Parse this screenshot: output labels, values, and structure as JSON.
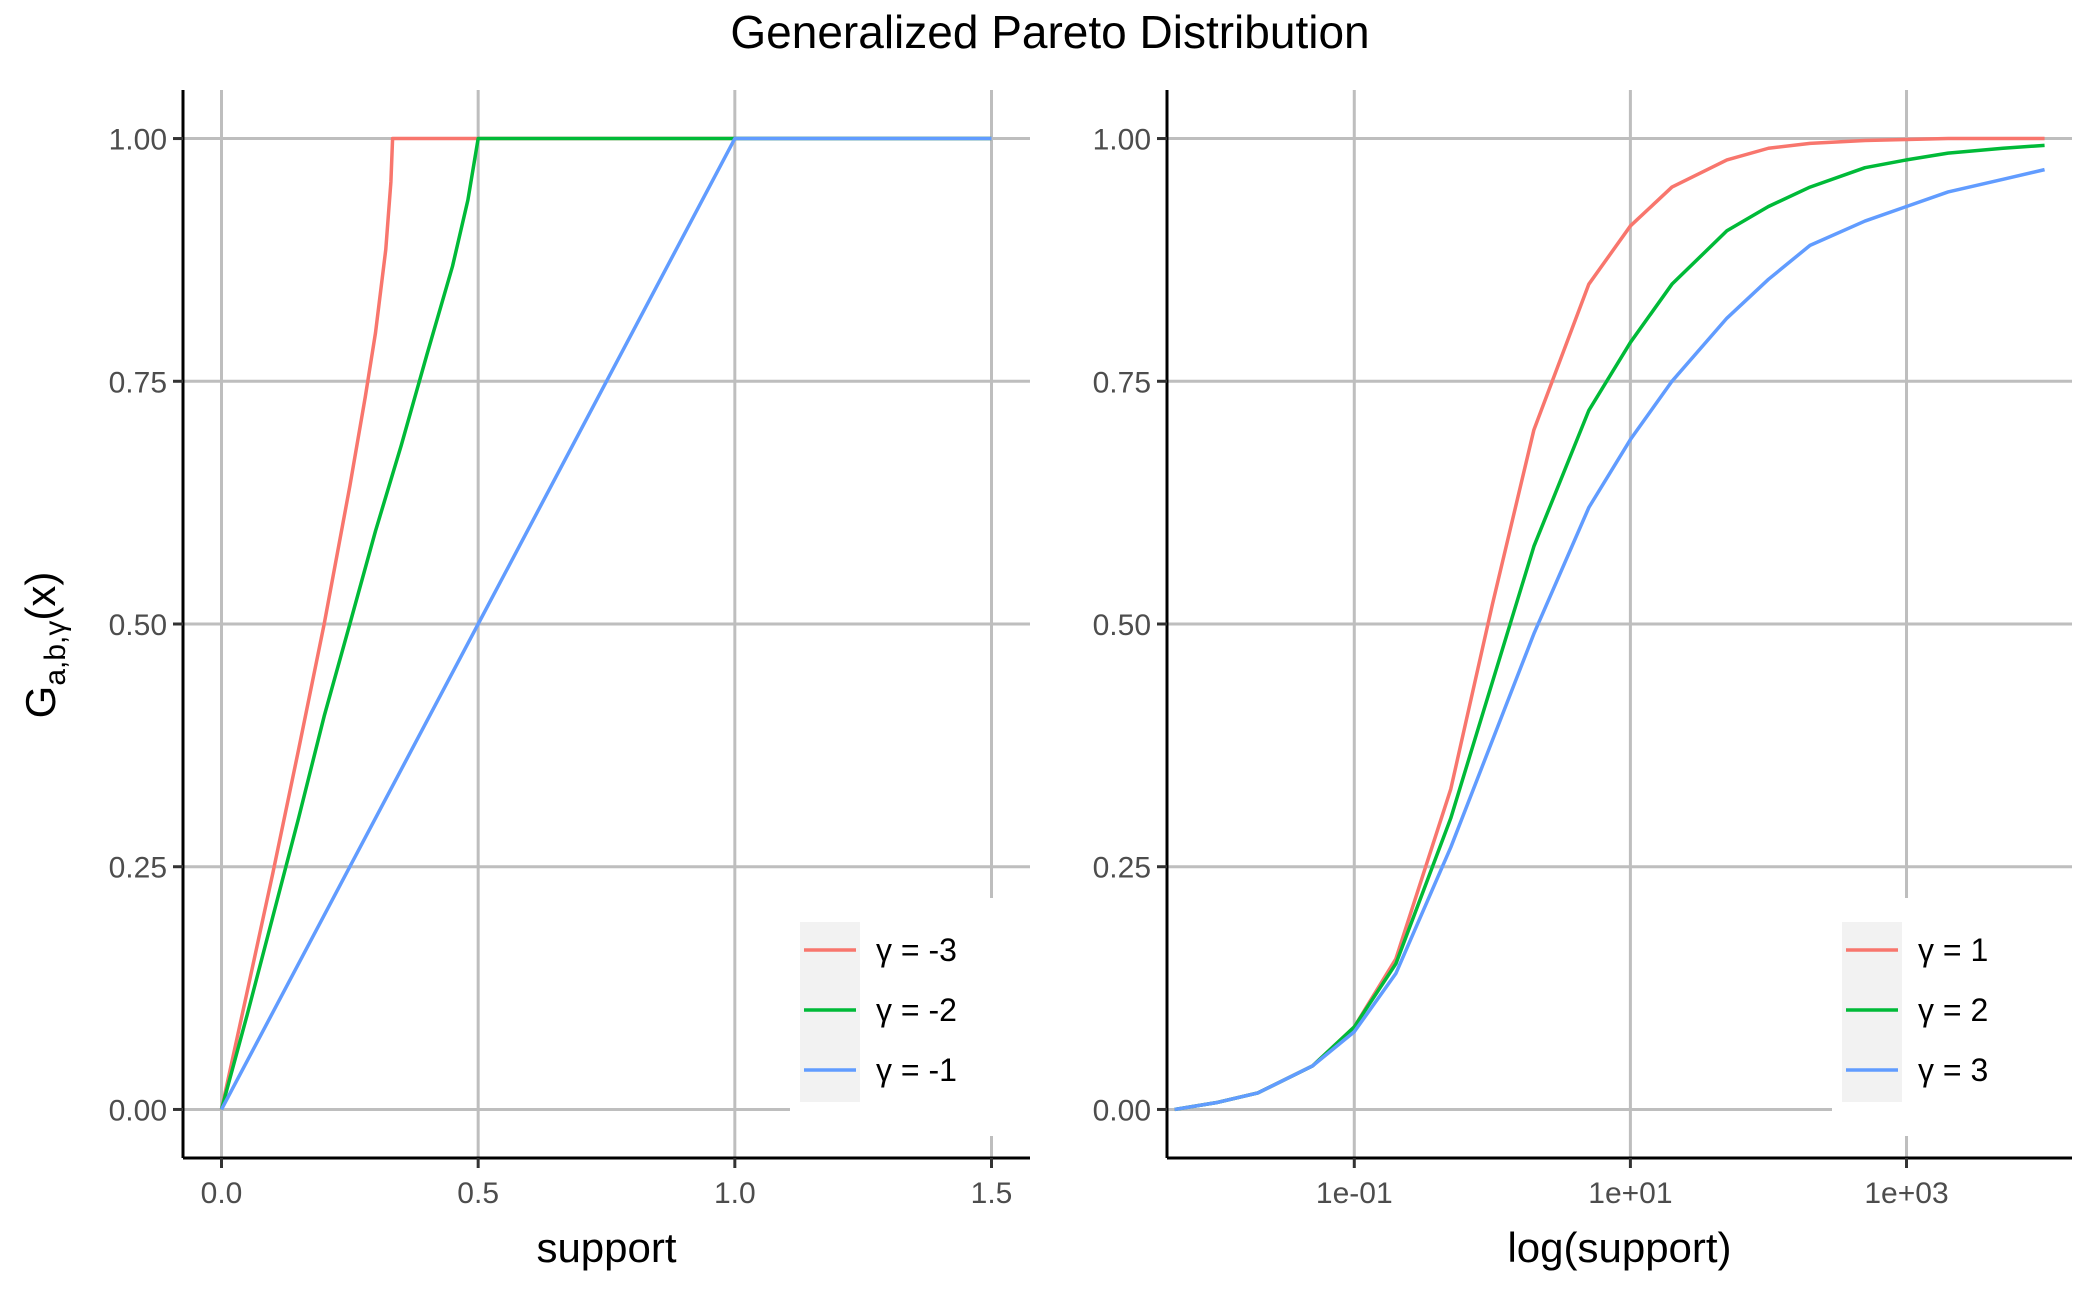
{
  "figure": {
    "title": "Generalized Pareto Distribution",
    "ylabel": "G",
    "ylabel_subscript": "a,b,γ",
    "ylabel_suffix": "(x)"
  },
  "colors": {
    "red": "#F8766D",
    "green": "#00BA38",
    "blue": "#619CFF",
    "grid": "#bebebe",
    "axis": "#000000",
    "legend_bg": "#f2f2f2"
  },
  "chart_data": [
    {
      "type": "line",
      "xlabel": "support",
      "ylabel": "G_{a,b,γ}(x)",
      "xlim": [
        -0.075,
        1.575
      ],
      "ylim": [
        -0.05,
        1.05
      ],
      "x_ticks": [
        0.0,
        0.5,
        1.0,
        1.5
      ],
      "x_tick_labels": [
        "0.0",
        "0.5",
        "1.0",
        "1.5"
      ],
      "y_ticks": [
        0,
        0.25,
        0.5,
        0.75,
        1.0
      ],
      "y_tick_labels": [
        "0.00",
        "0.25",
        "0.50",
        "0.75",
        "1.00"
      ],
      "grid": true,
      "legend_position": "bottom-right",
      "series": [
        {
          "name": "γ = -3",
          "color": "#F8766D",
          "x": [
            0,
            0.05,
            0.1,
            0.15,
            0.2,
            0.25,
            0.28,
            0.3,
            0.32,
            0.33,
            0.3333,
            0.3333,
            0.5,
            1.0,
            1.5
          ],
          "y": [
            0,
            0.1213,
            0.2434,
            0.3702,
            0.5,
            0.6419,
            0.7336,
            0.7999,
            0.8857,
            0.9554,
            1.0,
            1.0,
            1.0,
            1.0,
            1.0
          ]
        },
        {
          "name": "γ = -2",
          "color": "#00BA38",
          "x": [
            0,
            0.05,
            0.1,
            0.15,
            0.2,
            0.25,
            0.3,
            0.35,
            0.4,
            0.45,
            0.48,
            0.5,
            1.0,
            1.5
          ],
          "y": [
            0,
            0.0975,
            0.1985,
            0.2997,
            0.4051,
            0.5,
            0.5958,
            0.6837,
            0.7772,
            0.8684,
            0.9367,
            1.0,
            1.0,
            1.0
          ]
        },
        {
          "name": "γ = -1",
          "color": "#619CFF",
          "x": [
            0,
            0.25,
            0.5,
            0.75,
            1.0,
            1.5
          ],
          "y": [
            0,
            0.25,
            0.5,
            0.75,
            1.0,
            1.0
          ]
        }
      ]
    },
    {
      "type": "line",
      "xlabel": "log(support)",
      "xscale": "log10",
      "xlim": [
        0.0044,
        15800
      ],
      "ylim": [
        -0.05,
        1.05
      ],
      "x_ticks": [
        0.1,
        10,
        1000
      ],
      "x_tick_labels": [
        "1e-01",
        "1e+01",
        "1e+03"
      ],
      "y_ticks": [
        0,
        0.25,
        0.5,
        0.75,
        1.0
      ],
      "y_tick_labels": [
        "0.00",
        "0.25",
        "0.50",
        "0.75",
        "1.00"
      ],
      "grid": true,
      "legend_position": "bottom-right",
      "series": [
        {
          "name": "γ = 1",
          "color": "#F8766D",
          "x": [
            0.005,
            0.01,
            0.02,
            0.05,
            0.1,
            0.2,
            0.5,
            1,
            2,
            5,
            10,
            20,
            50,
            100,
            200,
            500,
            1000,
            2000,
            5000,
            10000
          ],
          "y": [
            0.0,
            0.007,
            0.017,
            0.045,
            0.085,
            0.155,
            0.33,
            0.52,
            0.7,
            0.85,
            0.91,
            0.95,
            0.978,
            0.99,
            0.995,
            0.998,
            0.999,
            1.0,
            1.0,
            1.0
          ]
        },
        {
          "name": "γ = 2",
          "color": "#00BA38",
          "x": [
            0.005,
            0.01,
            0.02,
            0.05,
            0.1,
            0.2,
            0.5,
            1,
            2,
            5,
            10,
            20,
            50,
            100,
            200,
            500,
            1000,
            2000,
            5000,
            10000
          ],
          "y": [
            0.0,
            0.007,
            0.017,
            0.045,
            0.085,
            0.15,
            0.3,
            0.44,
            0.58,
            0.72,
            0.79,
            0.85,
            0.905,
            0.93,
            0.95,
            0.97,
            0.978,
            0.985,
            0.99,
            0.993
          ]
        },
        {
          "name": "γ = 3",
          "color": "#619CFF",
          "x": [
            0.005,
            0.01,
            0.02,
            0.05,
            0.1,
            0.2,
            0.5,
            1,
            2,
            5,
            10,
            20,
            50,
            100,
            200,
            500,
            1000,
            2000,
            5000,
            10000
          ],
          "y": [
            0.0,
            0.007,
            0.017,
            0.045,
            0.08,
            0.14,
            0.27,
            0.38,
            0.49,
            0.62,
            0.69,
            0.75,
            0.815,
            0.855,
            0.89,
            0.915,
            0.93,
            0.945,
            0.958,
            0.968
          ]
        }
      ]
    }
  ]
}
